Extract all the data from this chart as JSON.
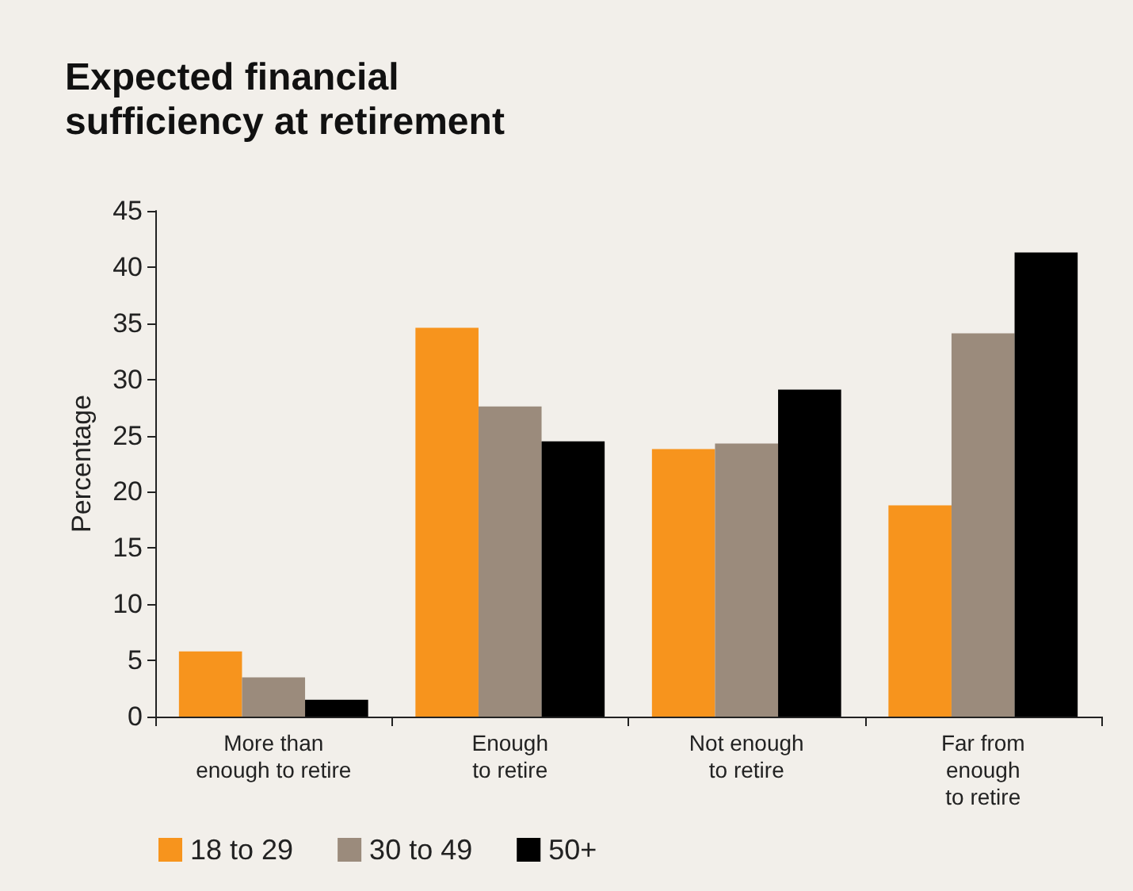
{
  "chart_data": {
    "type": "bar",
    "title": "Expected financial\nsufficiency at retirement",
    "ylabel": "Percentage",
    "categories": [
      "More than\nenough to retire",
      "Enough\nto retire",
      "Not enough\nto retire",
      "Far from\nenough\nto retire"
    ],
    "series": [
      {
        "name": "18 to 29",
        "color": "#f7941d",
        "values": [
          5.8,
          34.6,
          23.8,
          18.8
        ]
      },
      {
        "name": "30 to 49",
        "color": "#9b8b7c",
        "values": [
          3.5,
          27.6,
          24.3,
          34.1
        ]
      },
      {
        "name": "50+",
        "color": "#000000",
        "values": [
          1.5,
          24.5,
          29.1,
          41.3
        ]
      }
    ],
    "ylim": [
      0,
      45
    ],
    "yticks": [
      0,
      5,
      10,
      15,
      20,
      25,
      30,
      35,
      40,
      45
    ],
    "grid": false,
    "legend": "bottom left"
  }
}
